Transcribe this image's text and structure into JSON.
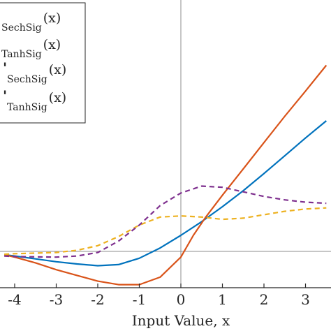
{
  "chart_data": {
    "type": "line",
    "title": "",
    "xlabel": "Input Value, x",
    "ylabel": "",
    "xlim": [
      -4.25,
      3.5
    ],
    "ylim": [
      -0.8,
      3.2
    ],
    "x_ticks": [
      -4,
      -3,
      -2,
      -1,
      0,
      1,
      2,
      3
    ],
    "x_tick_labels": [
      "-4",
      "-3",
      "-2",
      "-1",
      "0",
      "1",
      "2",
      "3"
    ],
    "grid": false,
    "zero_lines": true,
    "legend_position": "top-left",
    "series": [
      {
        "name": "SechSig(x)",
        "legend_main": "SechSig",
        "legend_suffix": "(x)",
        "legend_prefix": "",
        "color": "#0072BD",
        "style": "solid",
        "points": [
          [
            -4.25,
            -0.06
          ],
          [
            -4,
            -0.08
          ],
          [
            -3.5,
            -0.13
          ],
          [
            -3,
            -0.18
          ],
          [
            -2.5,
            -0.22
          ],
          [
            -2,
            -0.25
          ],
          [
            -1.5,
            -0.23
          ],
          [
            -1,
            -0.12
          ],
          [
            -0.5,
            0.06
          ],
          [
            0,
            0.28
          ],
          [
            0.5,
            0.52
          ],
          [
            1,
            0.78
          ],
          [
            1.5,
            1.06
          ],
          [
            2,
            1.36
          ],
          [
            2.5,
            1.67
          ],
          [
            3,
            1.98
          ],
          [
            3.5,
            2.28
          ]
        ]
      },
      {
        "name": "TanhSig(x)",
        "legend_main": "TanhSig",
        "legend_suffix": "(x)",
        "legend_prefix": "",
        "color": "#D95319",
        "style": "solid",
        "points": [
          [
            -4.25,
            -0.06
          ],
          [
            -4,
            -0.1
          ],
          [
            -3.5,
            -0.2
          ],
          [
            -3,
            -0.32
          ],
          [
            -2.5,
            -0.42
          ],
          [
            -2,
            -0.52
          ],
          [
            -1.5,
            -0.58
          ],
          [
            -1,
            -0.58
          ],
          [
            -0.5,
            -0.45
          ],
          [
            0,
            -0.1
          ],
          [
            0.3,
            0.28
          ],
          [
            0.6,
            0.6
          ],
          [
            1,
            0.98
          ],
          [
            1.5,
            1.44
          ],
          [
            2,
            1.9
          ],
          [
            2.5,
            2.36
          ],
          [
            3,
            2.8
          ],
          [
            3.5,
            3.25
          ]
        ]
      },
      {
        "name": "'SechSig(x)",
        "legend_main": "SechSig",
        "legend_suffix": "(x)",
        "legend_prefix": "'",
        "color": "#EDB120",
        "style": "dashed",
        "points": [
          [
            -4.25,
            -0.05
          ],
          [
            -4,
            -0.04
          ],
          [
            -3,
            -0.02
          ],
          [
            -2.5,
            0.02
          ],
          [
            -2,
            0.1
          ],
          [
            -1.5,
            0.26
          ],
          [
            -1,
            0.46
          ],
          [
            -0.5,
            0.6
          ],
          [
            0,
            0.62
          ],
          [
            0.5,
            0.6
          ],
          [
            1,
            0.56
          ],
          [
            1.5,
            0.58
          ],
          [
            2,
            0.64
          ],
          [
            2.5,
            0.7
          ],
          [
            3,
            0.74
          ],
          [
            3.5,
            0.76
          ]
        ]
      },
      {
        "name": "'TanhSig(x)",
        "legend_main": "TanhSig",
        "legend_suffix": "(x)",
        "legend_prefix": "'",
        "color": "#7E2F8E",
        "style": "dashed",
        "points": [
          [
            -4.25,
            -0.08
          ],
          [
            -4,
            -0.09
          ],
          [
            -3,
            -0.1
          ],
          [
            -2.5,
            -0.08
          ],
          [
            -2,
            -0.02
          ],
          [
            -1.5,
            0.18
          ],
          [
            -1,
            0.46
          ],
          [
            -0.5,
            0.8
          ],
          [
            0,
            1.02
          ],
          [
            0.5,
            1.14
          ],
          [
            1,
            1.12
          ],
          [
            1.5,
            1.04
          ],
          [
            2,
            0.96
          ],
          [
            2.5,
            0.9
          ],
          [
            3,
            0.86
          ],
          [
            3.5,
            0.84
          ]
        ]
      }
    ]
  }
}
